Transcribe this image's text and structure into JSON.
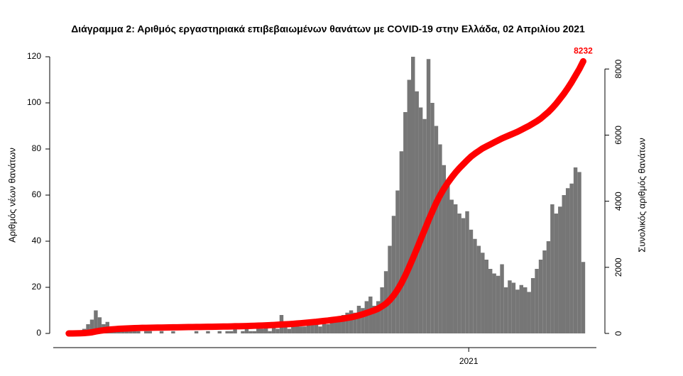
{
  "chart_data": {
    "type": "bar_line",
    "title": "Διάγραμμα 2: Αριθμός εργαστηριακά επιβεβαιωμένων θανάτων με COVID-19 στην Ελλάδα, 02 Απριλίου 2021",
    "ylabel": "Αριθμός νέων θανάτων",
    "y2label": "Συνολικός αριθμός θανάτων",
    "xlim": [
      -4,
      136.4
    ],
    "xticks": [
      {
        "value": 103.4,
        "label": "2021"
      }
    ],
    "ylim": [
      0,
      120
    ],
    "yticks": [
      0,
      20,
      40,
      60,
      80,
      100,
      120
    ],
    "y2lim": [
      0,
      8370
    ],
    "y2ticks": [
      0,
      2000,
      4000,
      6000,
      8000
    ],
    "series": [
      {
        "color": "#767676",
        "values": [
          0,
          0,
          0,
          1,
          2,
          4,
          6,
          10,
          7,
          4,
          5,
          3,
          2,
          2,
          1,
          1,
          2,
          1,
          1,
          0,
          1,
          1,
          0,
          0,
          1,
          0,
          0,
          1,
          0,
          0,
          0,
          0,
          0,
          1,
          0,
          0,
          1,
          0,
          0,
          1,
          0,
          1,
          1,
          2,
          0,
          1,
          2,
          1,
          1,
          2,
          2,
          3,
          1,
          4,
          2,
          8,
          3,
          2,
          4,
          5,
          3,
          3,
          4,
          4,
          5,
          3,
          6,
          4,
          5,
          7,
          6,
          8,
          9,
          10,
          9,
          12,
          11,
          14,
          16,
          12,
          14,
          20,
          27,
          38,
          51,
          62,
          79,
          96,
          110,
          120,
          105,
          98,
          93,
          119,
          100,
          90,
          82,
          73,
          65,
          58,
          56,
          52,
          50,
          53,
          45,
          41,
          38,
          35,
          32,
          28,
          26,
          25,
          30,
          20,
          23,
          22,
          19,
          21,
          20,
          18,
          24,
          28,
          32,
          36,
          40,
          56,
          52,
          55,
          60,
          63,
          65,
          72,
          70,
          31
        ]
      },
      {
        "color": "#ff0000",
        "axis": "y2",
        "values": [
          0,
          1,
          2,
          5,
          10,
          20,
          35,
          60,
          80,
          95,
          110,
          120,
          130,
          140,
          145,
          150,
          155,
          160,
          165,
          168,
          170,
          172,
          174,
          176,
          178,
          180,
          182,
          184,
          186,
          188,
          190,
          192,
          193,
          195,
          196,
          198,
          200,
          202,
          204,
          206,
          208,
          210,
          213,
          216,
          218,
          220,
          224,
          228,
          232,
          236,
          240,
          245,
          250,
          256,
          262,
          270,
          276,
          282,
          290,
          300,
          310,
          320,
          330,
          342,
          352,
          365,
          378,
          390,
          405,
          420,
          435,
          450,
          470,
          490,
          515,
          545,
          580,
          620,
          660,
          700,
          750,
          820,
          900,
          1010,
          1150,
          1320,
          1520,
          1750,
          2010,
          2280,
          2560,
          2850,
          3130,
          3420,
          3690,
          3950,
          4180,
          4380,
          4560,
          4720,
          4870,
          5000,
          5120,
          5240,
          5350,
          5440,
          5520,
          5600,
          5660,
          5720,
          5780,
          5840,
          5900,
          5950,
          6000,
          6050,
          6100,
          6160,
          6220,
          6280,
          6350,
          6420,
          6500,
          6600,
          6700,
          6820,
          6950,
          7100,
          7250,
          7420,
          7600,
          7800,
          8000,
          8232
        ]
      }
    ]
  }
}
